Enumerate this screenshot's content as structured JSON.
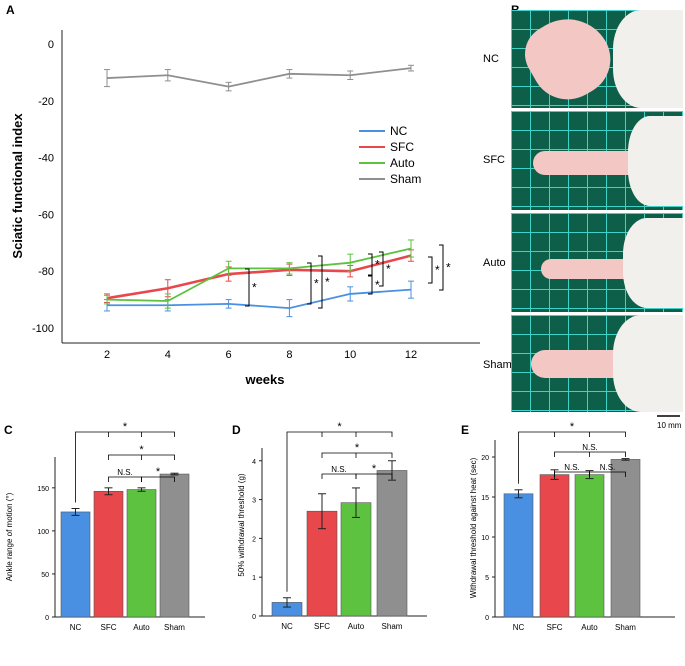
{
  "colors": {
    "NC": "#4a90e2",
    "SFC": "#e8474c",
    "Auto": "#5cc23f",
    "Sham": "#8f8f8f"
  },
  "panels": {
    "A": "A",
    "B": "B",
    "C": "C",
    "D": "D",
    "E": "E"
  },
  "chart_data": [
    {
      "id": "A",
      "type": "line",
      "xlabel": "weeks",
      "ylabel": "Sciatic functional index",
      "x": [
        2,
        4,
        6,
        8,
        10,
        12
      ],
      "ylim": [
        -100,
        0
      ],
      "yticks": [
        "0",
        "-20",
        "-40",
        "-60",
        "-80",
        "-100"
      ],
      "xticks": [
        "2",
        "4",
        "6",
        "8",
        "10",
        "12"
      ],
      "series": [
        {
          "name": "NC",
          "values": [
            -92,
            -92,
            -91.5,
            -93,
            -88,
            -86.5
          ],
          "err": [
            2,
            2,
            1.5,
            3,
            2.5,
            3
          ]
        },
        {
          "name": "SFC",
          "values": [
            -89.5,
            -86,
            -81,
            -79.5,
            -80,
            -74.5
          ],
          "err": [
            1.5,
            3,
            2.5,
            2,
            2,
            2
          ]
        },
        {
          "name": "Auto",
          "values": [
            -90,
            -90.5,
            -79,
            -79,
            -77,
            -72
          ],
          "err": [
            1.5,
            2.5,
            2.5,
            2,
            3,
            3
          ]
        },
        {
          "name": "Sham",
          "values": [
            -12,
            -11,
            -15,
            -10.5,
            -11,
            -8.5
          ],
          "err": [
            3,
            2,
            1.5,
            1.5,
            1.5,
            1
          ]
        }
      ],
      "legend": [
        "NC",
        "SFC",
        "Auto",
        "Sham"
      ],
      "sig": [
        "*",
        "*",
        "*",
        "*",
        "*",
        "*",
        "*",
        "*"
      ]
    },
    {
      "id": "C",
      "type": "bar",
      "ylabel": "Ankle range of motion (°)",
      "categories": [
        "NC",
        "SFC",
        "Auto",
        "Sham"
      ],
      "values": [
        122,
        146,
        148,
        166
      ],
      "err": [
        4,
        4,
        2,
        1
      ],
      "ylim": [
        0,
        180
      ],
      "yticks": [
        "0",
        "50",
        "100",
        "150"
      ],
      "sig": [
        "*",
        "*",
        "N.S.",
        "*"
      ]
    },
    {
      "id": "D",
      "type": "bar",
      "ylabel": "50% withdrawal threshold (g)",
      "categories": [
        "NC",
        "SFC",
        "Auto",
        "Sham"
      ],
      "values": [
        0.35,
        2.7,
        2.92,
        3.75
      ],
      "err": [
        0.12,
        0.45,
        0.38,
        0.25
      ],
      "ylim": [
        0,
        4.2
      ],
      "yticks": [
        "0",
        "1",
        "2",
        "3",
        "4"
      ],
      "sig": [
        "*",
        "*",
        "N.S.",
        "*"
      ]
    },
    {
      "id": "E",
      "type": "bar",
      "ylabel": "Withdrawal threshold against heat (sec)",
      "categories": [
        "NC",
        "SFC",
        "Auto",
        "Sham"
      ],
      "values": [
        15.4,
        17.8,
        17.8,
        19.7
      ],
      "err": [
        0.5,
        0.6,
        0.5,
        0.1
      ],
      "ylim": [
        0,
        21.5
      ],
      "yticks": [
        "0",
        "5",
        "10",
        "15",
        "20"
      ],
      "sig": [
        "*",
        "N.S.",
        "N.S.",
        "N.S."
      ]
    }
  ],
  "photos": {
    "labels": [
      "NC",
      "SFC",
      "Auto",
      "Sham"
    ],
    "scale_label": "10 mm"
  }
}
